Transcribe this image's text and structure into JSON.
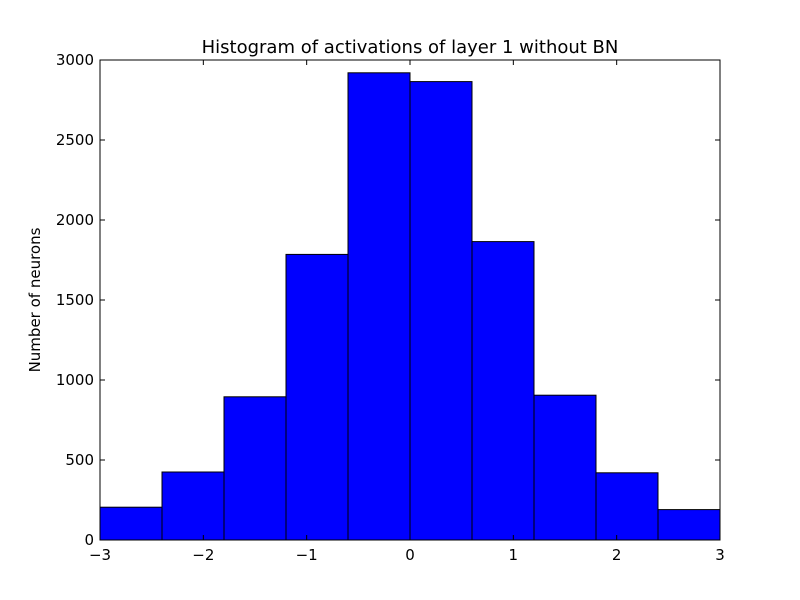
{
  "chart_data": {
    "type": "bar",
    "title": "Histogram of activations of layer 1  without BN",
    "xlabel": "",
    "ylabel": "Number of neurons",
    "xlim": [
      -3,
      3
    ],
    "ylim": [
      0,
      3000
    ],
    "grid": false,
    "legend": "none",
    "bar_color": "#0000ff",
    "edge_color": "#000000",
    "bin_edges": [
      -3,
      -2.4,
      -1.8,
      -1.2,
      -0.6,
      0,
      0.6,
      1.2,
      1.8,
      2.4,
      3
    ],
    "values": [
      205,
      425,
      895,
      1785,
      2920,
      2865,
      1865,
      905,
      420,
      190
    ],
    "x_ticks": [
      {
        "value": -3,
        "label": "−3"
      },
      {
        "value": -2,
        "label": "−2"
      },
      {
        "value": -1,
        "label": "−1"
      },
      {
        "value": 0,
        "label": "0"
      },
      {
        "value": 1,
        "label": "1"
      },
      {
        "value": 2,
        "label": "2"
      },
      {
        "value": 3,
        "label": "3"
      }
    ],
    "y_ticks": [
      {
        "value": 0,
        "label": "0"
      },
      {
        "value": 500,
        "label": "500"
      },
      {
        "value": 1000,
        "label": "1000"
      },
      {
        "value": 1500,
        "label": "1500"
      },
      {
        "value": 2000,
        "label": "2000"
      },
      {
        "value": 2500,
        "label": "2500"
      },
      {
        "value": 3000,
        "label": "3000"
      }
    ]
  }
}
